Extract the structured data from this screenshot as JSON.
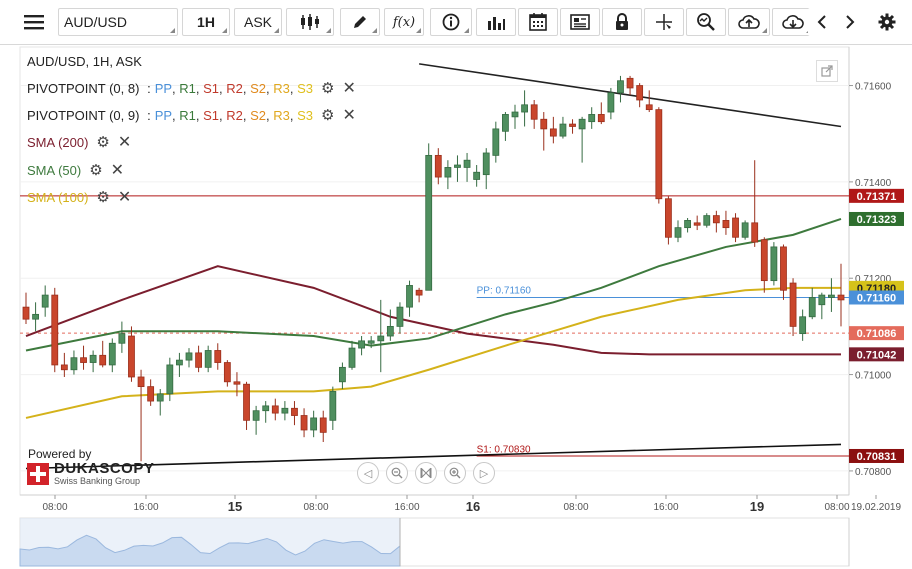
{
  "toolbar": {
    "menu_icon": "hamburger-icon",
    "symbol": "AUD/USD",
    "timeframe": "1H",
    "side": "ASK",
    "fx_label": "f(x)"
  },
  "chart_info": {
    "title": "AUD/USD, 1H, ASK"
  },
  "legend": [
    {
      "id": "pivot1",
      "label": "PIVOTPOINT (0, 8)",
      "pivots": [
        "PP",
        "R1",
        "S1",
        "R2",
        "S2",
        "R3",
        "S3"
      ]
    },
    {
      "id": "pivot2",
      "label": "PIVOTPOINT (0, 9)",
      "pivots": [
        "PP",
        "R1",
        "S1",
        "R2",
        "S2",
        "R3",
        "S3"
      ]
    },
    {
      "id": "sma200",
      "label": "SMA (200)",
      "color": "#7b1e2e"
    },
    {
      "id": "sma50",
      "label": "SMA (50)",
      "color": "#3e7a3e"
    },
    {
      "id": "sma100",
      "label": "SMA (100)",
      "color": "#d4b21a"
    }
  ],
  "branding": {
    "powered_by": "Powered by",
    "name": "DUKASCOPY",
    "sub": "Swiss Banking Group"
  },
  "chart_data": {
    "type": "candlestick",
    "title": "AUD/USD, 1H, ASK",
    "ylim": [
      0.7075,
      0.7168
    ],
    "y_ticks": [
      "0.71600",
      "0.71400",
      "0.71200",
      "0.71000",
      "0.70800"
    ],
    "x_labels": [
      {
        "label": "08:00",
        "big": false
      },
      {
        "label": "16:00",
        "big": false
      },
      {
        "label": "15",
        "big": true
      },
      {
        "label": "08:00",
        "big": false
      },
      {
        "label": "16:00",
        "big": false
      },
      {
        "label": "16",
        "big": true
      },
      {
        "label": "08:00",
        "big": false
      },
      {
        "label": "16:00",
        "big": false
      },
      {
        "label": "19",
        "big": true
      },
      {
        "label": "08:00",
        "big": false
      },
      {
        "label": "19.02.2019",
        "big": false
      }
    ],
    "price_tags": [
      {
        "value": "0.71371",
        "color": "#b01818"
      },
      {
        "value": "0.71323",
        "color": "#2e6e2e"
      },
      {
        "value": "0.71180",
        "color": "#d6c21a"
      },
      {
        "value": "0.71160",
        "color": "#4a90d9"
      },
      {
        "value": "0.71086",
        "color": "#e46b5c"
      },
      {
        "value": "0.71042",
        "color": "#7b1e2e"
      },
      {
        "value": "0.70831",
        "color": "#8b0f0f"
      }
    ],
    "annotations": [
      {
        "label": "PP: 0.71160",
        "value": 0.7116,
        "color": "#4a90d9"
      },
      {
        "label": "S1: 0.70830",
        "value": 0.7083,
        "color": "#b01818"
      }
    ],
    "candles": [
      {
        "o": 0.7114,
        "h": 0.7117,
        "l": 0.71105,
        "c": 0.71115
      },
      {
        "o": 0.71115,
        "h": 0.7115,
        "l": 0.7109,
        "c": 0.71125
      },
      {
        "o": 0.7114,
        "h": 0.71185,
        "l": 0.7112,
        "c": 0.71165
      },
      {
        "o": 0.71165,
        "h": 0.7118,
        "l": 0.71005,
        "c": 0.7102
      },
      {
        "o": 0.7102,
        "h": 0.71045,
        "l": 0.70995,
        "c": 0.7101
      },
      {
        "o": 0.7101,
        "h": 0.7105,
        "l": 0.71,
        "c": 0.71035
      },
      {
        "o": 0.71035,
        "h": 0.7106,
        "l": 0.7101,
        "c": 0.71025
      },
      {
        "o": 0.71025,
        "h": 0.7105,
        "l": 0.71005,
        "c": 0.7104
      },
      {
        "o": 0.7104,
        "h": 0.7107,
        "l": 0.71015,
        "c": 0.7102
      },
      {
        "o": 0.7102,
        "h": 0.71075,
        "l": 0.71005,
        "c": 0.71065
      },
      {
        "o": 0.71065,
        "h": 0.7111,
        "l": 0.71045,
        "c": 0.71085
      },
      {
        "o": 0.7108,
        "h": 0.711,
        "l": 0.70985,
        "c": 0.70995
      },
      {
        "o": 0.70995,
        "h": 0.7101,
        "l": 0.7082,
        "c": 0.70975
      },
      {
        "o": 0.70975,
        "h": 0.7099,
        "l": 0.70935,
        "c": 0.70945
      },
      {
        "o": 0.70945,
        "h": 0.7097,
        "l": 0.70915,
        "c": 0.7096
      },
      {
        "o": 0.7096,
        "h": 0.71035,
        "l": 0.70945,
        "c": 0.7102
      },
      {
        "o": 0.7102,
        "h": 0.71045,
        "l": 0.70995,
        "c": 0.7103
      },
      {
        "o": 0.7103,
        "h": 0.71055,
        "l": 0.71015,
        "c": 0.71045
      },
      {
        "o": 0.71045,
        "h": 0.7106,
        "l": 0.71005,
        "c": 0.71015
      },
      {
        "o": 0.71015,
        "h": 0.7106,
        "l": 0.71005,
        "c": 0.7105
      },
      {
        "o": 0.7105,
        "h": 0.71065,
        "l": 0.7101,
        "c": 0.71025
      },
      {
        "o": 0.71025,
        "h": 0.7103,
        "l": 0.70975,
        "c": 0.70985
      },
      {
        "o": 0.70985,
        "h": 0.71005,
        "l": 0.70955,
        "c": 0.7098
      },
      {
        "o": 0.7098,
        "h": 0.70985,
        "l": 0.70885,
        "c": 0.70905
      },
      {
        "o": 0.70905,
        "h": 0.70935,
        "l": 0.70875,
        "c": 0.70925
      },
      {
        "o": 0.70925,
        "h": 0.70945,
        "l": 0.709,
        "c": 0.70935
      },
      {
        "o": 0.70935,
        "h": 0.7095,
        "l": 0.70905,
        "c": 0.7092
      },
      {
        "o": 0.7092,
        "h": 0.70945,
        "l": 0.70905,
        "c": 0.7093
      },
      {
        "o": 0.7093,
        "h": 0.70945,
        "l": 0.70895,
        "c": 0.70915
      },
      {
        "o": 0.70915,
        "h": 0.7093,
        "l": 0.7087,
        "c": 0.70885
      },
      {
        "o": 0.70885,
        "h": 0.70925,
        "l": 0.7087,
        "c": 0.7091
      },
      {
        "o": 0.7091,
        "h": 0.70925,
        "l": 0.7086,
        "c": 0.7088
      },
      {
        "o": 0.70905,
        "h": 0.70975,
        "l": 0.70885,
        "c": 0.70965
      },
      {
        "o": 0.70985,
        "h": 0.71025,
        "l": 0.7097,
        "c": 0.71015
      },
      {
        "o": 0.71015,
        "h": 0.7107,
        "l": 0.7101,
        "c": 0.71055
      },
      {
        "o": 0.71055,
        "h": 0.7108,
        "l": 0.7104,
        "c": 0.7107
      },
      {
        "o": 0.71065,
        "h": 0.7108,
        "l": 0.71055,
        "c": 0.7107
      },
      {
        "o": 0.7107,
        "h": 0.71155,
        "l": 0.71005,
        "c": 0.7108
      },
      {
        "o": 0.7108,
        "h": 0.71135,
        "l": 0.7107,
        "c": 0.711
      },
      {
        "o": 0.711,
        "h": 0.7115,
        "l": 0.71085,
        "c": 0.7114
      },
      {
        "o": 0.7114,
        "h": 0.71195,
        "l": 0.7112,
        "c": 0.71185
      },
      {
        "o": 0.71175,
        "h": 0.7118,
        "l": 0.7115,
        "c": 0.71165
      },
      {
        "o": 0.71175,
        "h": 0.7148,
        "l": 0.71175,
        "c": 0.71455
      },
      {
        "o": 0.71455,
        "h": 0.7147,
        "l": 0.71395,
        "c": 0.7141
      },
      {
        "o": 0.7141,
        "h": 0.71445,
        "l": 0.71385,
        "c": 0.7143
      },
      {
        "o": 0.7143,
        "h": 0.71455,
        "l": 0.714,
        "c": 0.71435
      },
      {
        "o": 0.7143,
        "h": 0.7146,
        "l": 0.714,
        "c": 0.71445
      },
      {
        "o": 0.71405,
        "h": 0.71435,
        "l": 0.7139,
        "c": 0.7142
      },
      {
        "o": 0.71415,
        "h": 0.7147,
        "l": 0.71385,
        "c": 0.7146
      },
      {
        "o": 0.71455,
        "h": 0.71525,
        "l": 0.7144,
        "c": 0.7151
      },
      {
        "o": 0.71505,
        "h": 0.71545,
        "l": 0.71485,
        "c": 0.7154
      },
      {
        "o": 0.71535,
        "h": 0.7156,
        "l": 0.7151,
        "c": 0.71545
      },
      {
        "o": 0.71545,
        "h": 0.7159,
        "l": 0.71515,
        "c": 0.7156
      },
      {
        "o": 0.7156,
        "h": 0.7157,
        "l": 0.7151,
        "c": 0.7153
      },
      {
        "o": 0.7153,
        "h": 0.71545,
        "l": 0.71465,
        "c": 0.7151
      },
      {
        "o": 0.7151,
        "h": 0.71535,
        "l": 0.7148,
        "c": 0.71495
      },
      {
        "o": 0.71495,
        "h": 0.71535,
        "l": 0.7149,
        "c": 0.7152
      },
      {
        "o": 0.7152,
        "h": 0.7153,
        "l": 0.715,
        "c": 0.71515
      },
      {
        "o": 0.7151,
        "h": 0.71535,
        "l": 0.7144,
        "c": 0.7153
      },
      {
        "o": 0.71525,
        "h": 0.71555,
        "l": 0.7151,
        "c": 0.7154
      },
      {
        "o": 0.7154,
        "h": 0.71565,
        "l": 0.7152,
        "c": 0.71525
      },
      {
        "o": 0.71545,
        "h": 0.71595,
        "l": 0.7153,
        "c": 0.71585
      },
      {
        "o": 0.71585,
        "h": 0.7162,
        "l": 0.71565,
        "c": 0.7161
      },
      {
        "o": 0.71615,
        "h": 0.7162,
        "l": 0.7158,
        "c": 0.71595
      },
      {
        "o": 0.716,
        "h": 0.71605,
        "l": 0.71555,
        "c": 0.7157
      },
      {
        "o": 0.7156,
        "h": 0.7159,
        "l": 0.71545,
        "c": 0.7155
      },
      {
        "o": 0.7155,
        "h": 0.71555,
        "l": 0.71355,
        "c": 0.71365
      },
      {
        "o": 0.71365,
        "h": 0.7137,
        "l": 0.7127,
        "c": 0.71285
      },
      {
        "o": 0.71285,
        "h": 0.7132,
        "l": 0.71275,
        "c": 0.71305
      },
      {
        "o": 0.71305,
        "h": 0.71325,
        "l": 0.71295,
        "c": 0.7132
      },
      {
        "o": 0.71315,
        "h": 0.7133,
        "l": 0.713,
        "c": 0.7131
      },
      {
        "o": 0.7131,
        "h": 0.71335,
        "l": 0.71305,
        "c": 0.7133
      },
      {
        "o": 0.7133,
        "h": 0.7134,
        "l": 0.71295,
        "c": 0.71315
      },
      {
        "o": 0.7132,
        "h": 0.7134,
        "l": 0.7129,
        "c": 0.71305
      },
      {
        "o": 0.71325,
        "h": 0.71335,
        "l": 0.71275,
        "c": 0.71285
      },
      {
        "o": 0.71285,
        "h": 0.7132,
        "l": 0.7128,
        "c": 0.71315
      },
      {
        "o": 0.71315,
        "h": 0.71445,
        "l": 0.71265,
        "c": 0.71275
      },
      {
        "o": 0.7128,
        "h": 0.71285,
        "l": 0.7117,
        "c": 0.71195
      },
      {
        "o": 0.71195,
        "h": 0.71275,
        "l": 0.71185,
        "c": 0.71265
      },
      {
        "o": 0.71265,
        "h": 0.7127,
        "l": 0.71155,
        "c": 0.71175
      },
      {
        "o": 0.7119,
        "h": 0.712,
        "l": 0.7108,
        "c": 0.711
      },
      {
        "o": 0.71085,
        "h": 0.71135,
        "l": 0.7107,
        "c": 0.7112
      },
      {
        "o": 0.7112,
        "h": 0.7118,
        "l": 0.71115,
        "c": 0.7116
      },
      {
        "o": 0.71145,
        "h": 0.7117,
        "l": 0.71115,
        "c": 0.71165
      },
      {
        "o": 0.7116,
        "h": 0.712,
        "l": 0.7113,
        "c": 0.71165
      },
      {
        "o": 0.71165,
        "h": 0.7123,
        "l": 0.711,
        "c": 0.71155
      }
    ],
    "sma200": [
      [
        0,
        0.7108
      ],
      [
        10,
        0.71155
      ],
      [
        20,
        0.71225
      ],
      [
        30,
        0.7118
      ],
      [
        38,
        0.7112
      ],
      [
        46,
        0.71085
      ],
      [
        55,
        0.71062
      ],
      [
        60,
        0.71045
      ],
      [
        65,
        0.71042
      ],
      [
        75,
        0.71042
      ],
      [
        85,
        0.71042
      ]
    ],
    "sma50": [
      [
        0,
        0.7105
      ],
      [
        10,
        0.7109
      ],
      [
        20,
        0.7109
      ],
      [
        30,
        0.7108
      ],
      [
        36,
        0.7106
      ],
      [
        42,
        0.71075
      ],
      [
        50,
        0.71125
      ],
      [
        55,
        0.7115
      ],
      [
        60,
        0.7118
      ],
      [
        66,
        0.71225
      ],
      [
        73,
        0.71265
      ],
      [
        80,
        0.7129
      ],
      [
        85,
        0.71323
      ]
    ],
    "sma100": [
      [
        0,
        0.7091
      ],
      [
        10,
        0.70955
      ],
      [
        20,
        0.70965
      ],
      [
        30,
        0.70965
      ],
      [
        36,
        0.70975
      ],
      [
        42,
        0.7101
      ],
      [
        50,
        0.7106
      ],
      [
        55,
        0.7109
      ],
      [
        60,
        0.7112
      ],
      [
        68,
        0.71155
      ],
      [
        75,
        0.71175
      ],
      [
        80,
        0.7118
      ],
      [
        85,
        0.7118
      ]
    ],
    "trendlines": [
      {
        "name": "upper",
        "from": [
          41,
          0.71645
        ],
        "to": [
          85,
          0.71515
        ],
        "color": "#222"
      },
      {
        "name": "lower",
        "from": [
          0,
          0.70805
        ],
        "to": [
          85,
          0.70855
        ],
        "color": "#111"
      }
    ],
    "levels": [
      {
        "value": 0.71371,
        "color": "#b01818",
        "style": "solid"
      },
      {
        "value": 0.7116,
        "color": "#4a90d9",
        "style": "solid",
        "from": 47
      },
      {
        "value": 0.71086,
        "color": "#e46b5c",
        "style": "dashed"
      },
      {
        "value": 0.70831,
        "color": "#b01818",
        "style": "solid",
        "from": 47
      }
    ]
  }
}
